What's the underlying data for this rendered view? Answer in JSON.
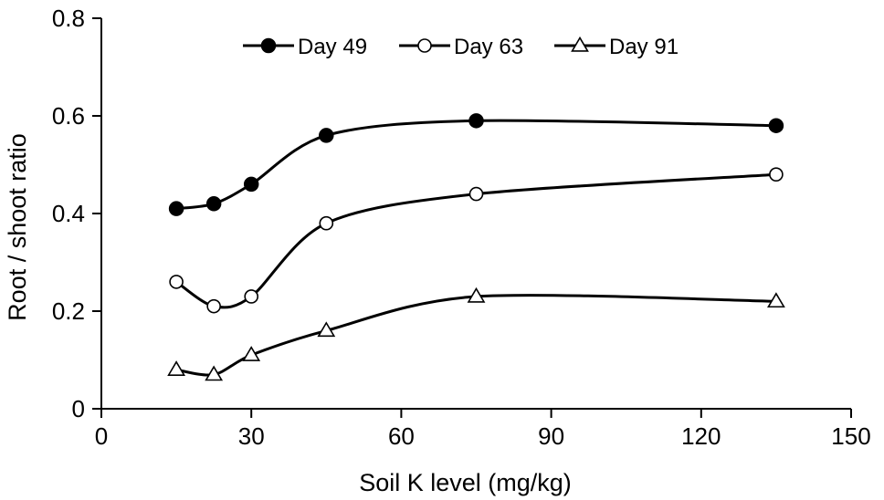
{
  "chart_data": {
    "type": "line",
    "title": "",
    "xlabel": "Soil K level (mg/kg)",
    "ylabel": "Root / shoot ratio",
    "xlim": [
      0,
      150
    ],
    "ylim": [
      0,
      0.8
    ],
    "x_ticks": [
      0,
      30,
      60,
      90,
      120,
      150
    ],
    "y_ticks": [
      0,
      0.2,
      0.4,
      0.6,
      0.8
    ],
    "x_tick_labels": [
      "0",
      "30",
      "60",
      "90",
      "120",
      "150"
    ],
    "y_tick_labels": [
      "0",
      "0.2",
      "0.4",
      "0.6",
      "0.8"
    ],
    "grid": false,
    "legend_position": "top",
    "x": [
      15,
      22.5,
      30,
      45,
      75,
      135
    ],
    "series": [
      {
        "name": "Day 49",
        "marker": "filled-circle",
        "values": [
          0.41,
          0.42,
          0.46,
          0.56,
          0.59,
          0.58
        ]
      },
      {
        "name": "Day 63",
        "marker": "open-circle",
        "values": [
          0.26,
          0.21,
          0.23,
          0.38,
          0.44,
          0.48
        ]
      },
      {
        "name": "Day 91",
        "marker": "open-triangle",
        "values": [
          0.08,
          0.07,
          0.11,
          0.16,
          0.23,
          0.22
        ]
      }
    ]
  }
}
